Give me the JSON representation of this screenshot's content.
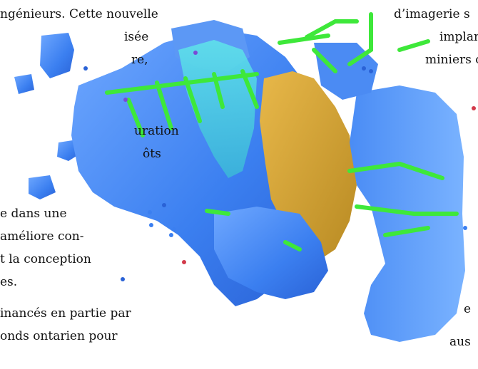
{
  "left_column": [
    "ngénieurs. Cette nouvelle",
    "isée",
    "re,",
    "uration",
    "ôts",
    "e dans une",
    "améliore con-",
    "t la conception",
    "es.",
    "inancés en partie par",
    "onds ontarien pour"
  ],
  "right_column": [
    "d’imagerie s",
    "implan",
    "miniers c",
    "e",
    "aus"
  ],
  "image": {
    "subject": "3d-mine-visualization",
    "colors": {
      "ore_blue": "#3b7ff0",
      "ore_blue_light": "#6fa8ff",
      "tunnels_green": "#3ee83a",
      "gold_body": "#d9a534",
      "cyan_body": "#4fd6e0"
    }
  }
}
